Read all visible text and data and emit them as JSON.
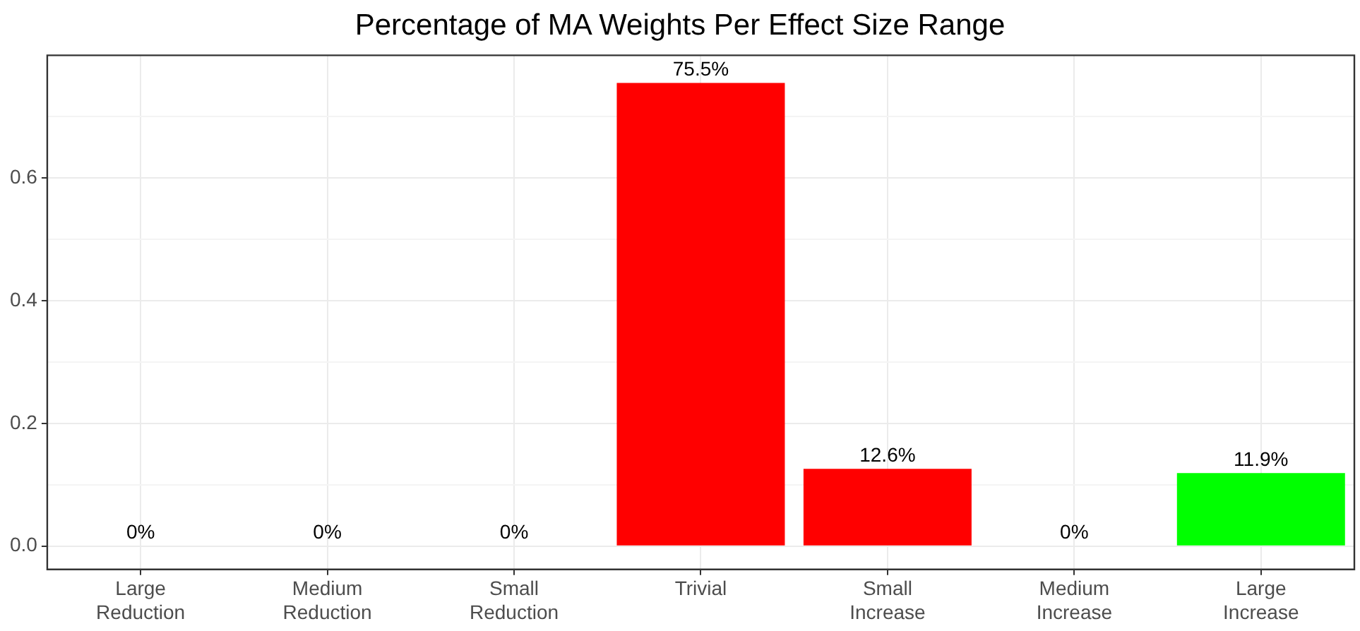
{
  "chart_data": {
    "type": "bar",
    "title": "Percentage of MA Weights Per Effect Size Range",
    "categories": [
      "Large Reduction",
      "Medium Reduction",
      "Small Reduction",
      "Trivial",
      "Small Increase",
      "Medium Increase",
      "Large Increase"
    ],
    "values": [
      0,
      0,
      0,
      0.755,
      0.126,
      0,
      0.119
    ],
    "colors": [
      "#ff0000",
      "#ff0000",
      "#ff0000",
      "#ff0000",
      "#ff0000",
      "#ff0000",
      "#00ff00"
    ],
    "value_labels": [
      "0%",
      "0%",
      "0%",
      "75.5%",
      "12.6%",
      "0%",
      "11.9%"
    ],
    "ylim": [
      -0.038,
      0.8
    ],
    "yticks": [
      {
        "value": 0,
        "label": "0.0"
      },
      {
        "value": 0.1,
        "label": null
      },
      {
        "value": 0.2,
        "label": "0.2"
      },
      {
        "value": 0.3,
        "label": null
      },
      {
        "value": 0.4,
        "label": "0.4"
      },
      {
        "value": 0.5,
        "label": null
      },
      {
        "value": 0.6,
        "label": "0.6"
      },
      {
        "value": 0.7,
        "label": null
      }
    ],
    "grid": true,
    "legend": false
  }
}
